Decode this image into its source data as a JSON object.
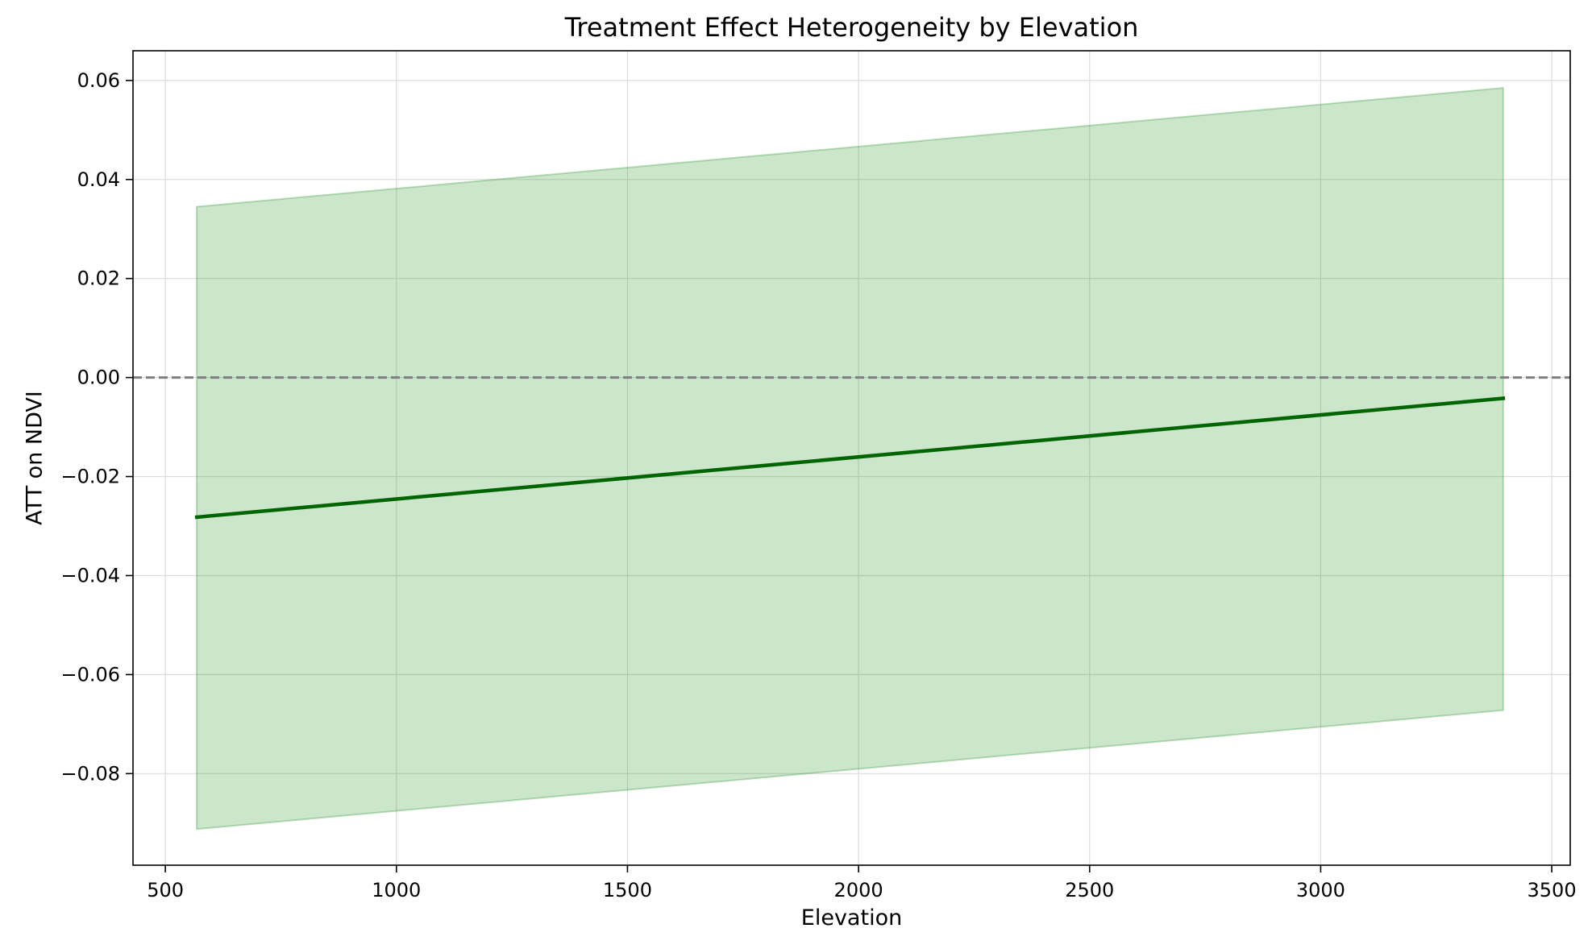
{
  "chart_data": {
    "type": "line",
    "title": "Treatment Effect Heterogeneity by Elevation",
    "xlabel": "Elevation",
    "ylabel": "ATT on NDVI",
    "xlim": [
      430,
      3540
    ],
    "ylim": [
      -0.0985,
      0.066
    ],
    "xticks": [
      500,
      1000,
      1500,
      2000,
      2500,
      3000,
      3500
    ],
    "yticks": [
      -0.08,
      -0.06,
      -0.04,
      -0.02,
      0.0,
      0.02,
      0.04,
      0.06
    ],
    "ytick_labels": [
      "−0.08",
      "−0.06",
      "−0.04",
      "−0.02",
      "0.00",
      "0.02",
      "0.04",
      "0.06"
    ],
    "grid": true,
    "reference_line": {
      "y": 0,
      "style": "dashed",
      "color": "#7f7f7f"
    },
    "series": [
      {
        "x": [
          568,
          3395
        ],
        "y": [
          -0.0282,
          -0.0042
        ],
        "color": "#006400"
      }
    ],
    "band": {
      "x": [
        568,
        3395
      ],
      "lower": [
        -0.0912,
        -0.0672
      ],
      "upper": [
        0.0345,
        0.0585
      ],
      "color": "#008000",
      "opacity": 0.2
    }
  }
}
